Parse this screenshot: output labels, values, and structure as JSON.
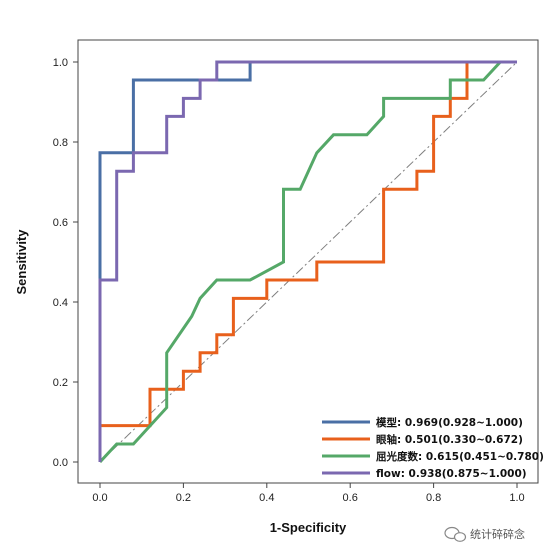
{
  "chart_data": {
    "type": "line",
    "title": "",
    "xlabel": "1-Specificity",
    "ylabel": "Sensitivity",
    "xlim": [
      0,
      1
    ],
    "ylim": [
      0,
      1
    ],
    "x_ticks": [
      "0.0",
      "0.2",
      "0.4",
      "0.6",
      "0.8",
      "1.0"
    ],
    "y_ticks": [
      "0.0",
      "0.2",
      "0.4",
      "0.6",
      "0.8",
      "1.0"
    ],
    "grid": false,
    "legend_position": "bottom-right",
    "reference_line": {
      "style": "dashed",
      "from": [
        0,
        0
      ],
      "to": [
        1,
        1
      ],
      "color": "#7f7f7f"
    },
    "series": [
      {
        "name": "模型: 0.969(0.928~1.000)",
        "color": "#4a6fa5",
        "points": [
          [
            0,
            0
          ],
          [
            0,
            0.773
          ],
          [
            0.08,
            0.773
          ],
          [
            0.08,
            0.955
          ],
          [
            0.36,
            0.955
          ],
          [
            0.36,
            1.0
          ],
          [
            1.0,
            1.0
          ]
        ]
      },
      {
        "name": "眼轴: 0.501(0.330~0.672)",
        "color": "#e8601c",
        "points": [
          [
            0,
            0
          ],
          [
            0,
            0.091
          ],
          [
            0.12,
            0.091
          ],
          [
            0.12,
            0.182
          ],
          [
            0.2,
            0.182
          ],
          [
            0.2,
            0.227
          ],
          [
            0.24,
            0.227
          ],
          [
            0.24,
            0.273
          ],
          [
            0.28,
            0.273
          ],
          [
            0.28,
            0.318
          ],
          [
            0.32,
            0.318
          ],
          [
            0.32,
            0.409
          ],
          [
            0.4,
            0.409
          ],
          [
            0.4,
            0.455
          ],
          [
            0.52,
            0.455
          ],
          [
            0.52,
            0.5
          ],
          [
            0.68,
            0.5
          ],
          [
            0.68,
            0.682
          ],
          [
            0.76,
            0.682
          ],
          [
            0.76,
            0.727
          ],
          [
            0.8,
            0.727
          ],
          [
            0.8,
            0.864
          ],
          [
            0.84,
            0.864
          ],
          [
            0.84,
            0.909
          ],
          [
            0.88,
            0.909
          ],
          [
            0.88,
            1.0
          ],
          [
            1.0,
            1.0
          ]
        ]
      },
      {
        "name": "屈光度数: 0.615(0.451~0.780)",
        "color": "#55a868",
        "points": [
          [
            0,
            0
          ],
          [
            0.04,
            0.045
          ],
          [
            0.08,
            0.045
          ],
          [
            0.16,
            0.136
          ],
          [
            0.16,
            0.273
          ],
          [
            0.22,
            0.364
          ],
          [
            0.24,
            0.409
          ],
          [
            0.28,
            0.455
          ],
          [
            0.36,
            0.455
          ],
          [
            0.44,
            0.5
          ],
          [
            0.44,
            0.682
          ],
          [
            0.48,
            0.682
          ],
          [
            0.52,
            0.773
          ],
          [
            0.56,
            0.818
          ],
          [
            0.64,
            0.818
          ],
          [
            0.68,
            0.864
          ],
          [
            0.68,
            0.909
          ],
          [
            0.84,
            0.909
          ],
          [
            0.84,
            0.955
          ],
          [
            0.92,
            0.955
          ],
          [
            0.96,
            1.0
          ],
          [
            1.0,
            1.0
          ]
        ]
      },
      {
        "name": "flow: 0.938(0.875~1.000)",
        "color": "#7b68b0",
        "points": [
          [
            0,
            0
          ],
          [
            0,
            0.455
          ],
          [
            0.04,
            0.455
          ],
          [
            0.04,
            0.727
          ],
          [
            0.08,
            0.727
          ],
          [
            0.08,
            0.773
          ],
          [
            0.16,
            0.773
          ],
          [
            0.16,
            0.864
          ],
          [
            0.2,
            0.864
          ],
          [
            0.2,
            0.909
          ],
          [
            0.24,
            0.909
          ],
          [
            0.24,
            0.955
          ],
          [
            0.28,
            0.955
          ],
          [
            0.28,
            1.0
          ],
          [
            1.0,
            1.0
          ]
        ]
      }
    ]
  },
  "watermark": {
    "text": "统计碎碎念",
    "icon": "wechat-icon"
  }
}
